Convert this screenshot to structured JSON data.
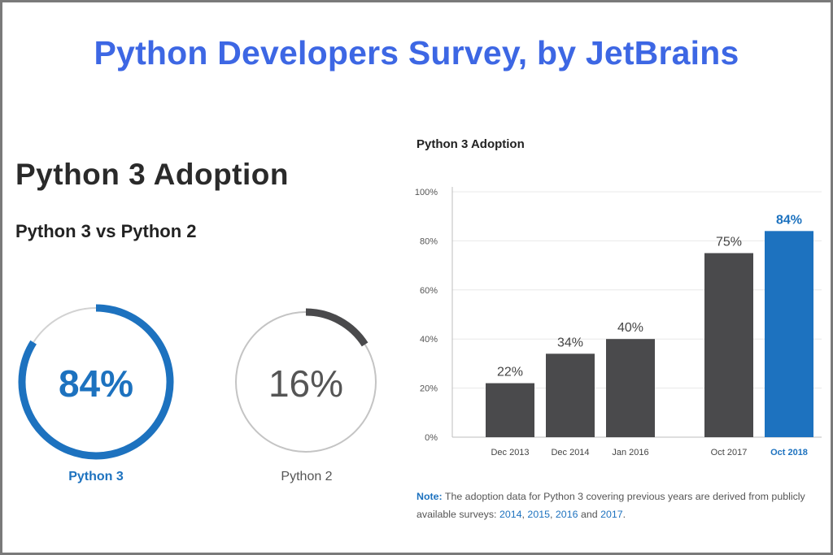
{
  "title": "Python Developers Survey, by JetBrains",
  "left_panel": {
    "heading": "Python 3 Adoption",
    "subheading": "Python 3 vs Python 2",
    "donuts": [
      {
        "name": "python3",
        "value_label": "84%",
        "fraction": 0.84,
        "caption": "Python 3",
        "color": "#1d72bf"
      },
      {
        "name": "python2",
        "value_label": "16%",
        "fraction": 0.16,
        "caption": "Python 2",
        "color": "#4a4a4c"
      }
    ]
  },
  "chart_data": {
    "type": "bar",
    "title": "Python 3 Adoption",
    "categories": [
      "Dec 2013",
      "Dec 2014",
      "Jan 2016",
      "Oct 2017",
      "Oct 2018"
    ],
    "values": [
      22,
      34,
      40,
      75,
      84
    ],
    "value_labels": [
      "22%",
      "34%",
      "40%",
      "75%",
      "84%"
    ],
    "highlight_index": 4,
    "yticks": [
      0,
      20,
      40,
      60,
      80,
      100
    ],
    "ytick_labels": [
      "0%",
      "20%",
      "40%",
      "60%",
      "80%",
      "100%"
    ],
    "ylim": [
      0,
      100
    ],
    "xlabel": "",
    "ylabel": "",
    "grid": true,
    "colors": {
      "bar": "#4a4a4c",
      "highlight": "#1d72bf",
      "grid": "#e8e8e8"
    }
  },
  "note": {
    "label": "Note:",
    "text": "The adoption data for Python 3 covering previous years are derived from publicly available surveys:",
    "links": [
      "2014",
      "2015",
      "2016",
      "2017"
    ],
    "sep1": ",",
    "sep2": ",",
    "and": "and",
    "end": "."
  }
}
